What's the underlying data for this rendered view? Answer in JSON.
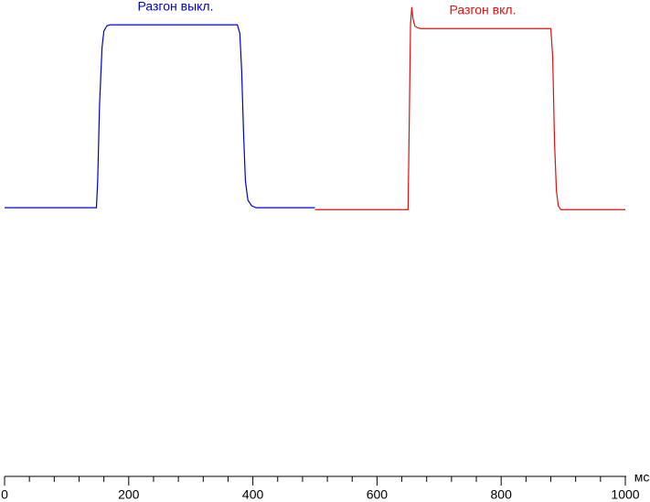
{
  "chart_data": {
    "type": "line",
    "x_unit": "мс",
    "xlim": [
      0,
      1000
    ],
    "xticks": [
      0,
      200,
      400,
      600,
      800,
      1000
    ],
    "xminorticks": [
      40,
      80,
      120,
      160,
      240,
      280,
      320,
      360,
      440,
      480,
      520,
      560,
      640,
      680,
      720,
      760,
      840,
      880,
      920,
      960
    ],
    "ylim": [
      0,
      100
    ],
    "series": [
      {
        "name": "Разгон выкл.",
        "color": "#0000cc",
        "x": [
          0,
          148,
          150,
          153,
          157,
          160,
          165,
          170,
          375,
          379,
          382,
          385,
          388,
          392,
          398,
          405,
          500
        ],
        "values": [
          56.4,
          56.4,
          62,
          78,
          90,
          93.5,
          94.6,
          94.8,
          94.8,
          93,
          85,
          72,
          62,
          58,
          56.8,
          56.4,
          56.4
        ]
      },
      {
        "name": "Разгон вкл.",
        "color": "#dd1111",
        "x": [
          500,
          650,
          652,
          654,
          656,
          658,
          661,
          665,
          670,
          880,
          883,
          886,
          889,
          892,
          896,
          1000
        ],
        "values": [
          56,
          56,
          75,
          95,
          98.5,
          96,
          94.5,
          94.2,
          94,
          94,
          88,
          70,
          60,
          56.8,
          56,
          56
        ]
      }
    ]
  }
}
